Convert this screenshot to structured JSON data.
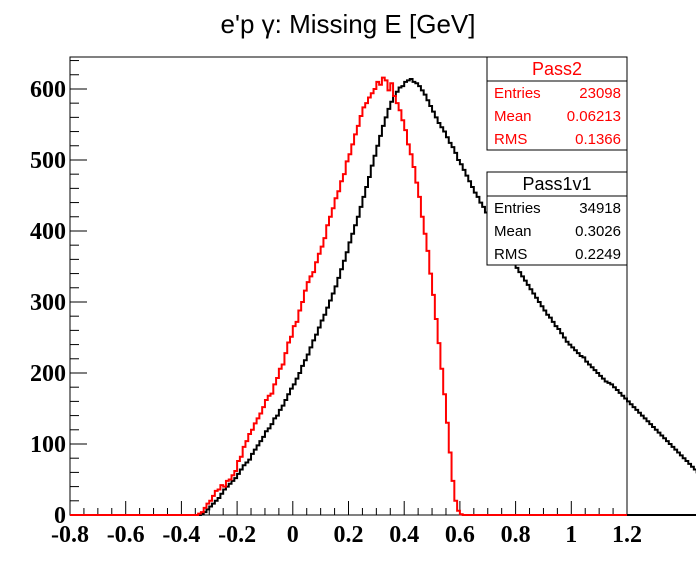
{
  "chart_data": {
    "type": "bar",
    "title_prefix": "e'p ",
    "title_symbol": "γ",
    "title_suffix": ": Missing E [GeV]",
    "xlabel": "",
    "ylabel": "",
    "xlim": [
      -0.8,
      1.2
    ],
    "ylim": [
      0,
      645
    ],
    "x_ticks": [
      -0.8,
      -0.6,
      -0.4,
      -0.2,
      0,
      0.2,
      0.4,
      0.6,
      0.8,
      1,
      1.2
    ],
    "x_tick_labels": [
      "-0.8",
      "-0.6",
      "-0.4",
      "-0.2",
      "0",
      "0.2",
      "0.4",
      "0.6",
      "0.8",
      "1",
      "1.2"
    ],
    "y_ticks": [
      0,
      100,
      200,
      300,
      400,
      500,
      600
    ],
    "y_tick_labels": [
      "0",
      "100",
      "200",
      "300",
      "400",
      "500",
      "600"
    ],
    "bin_width": 0.01,
    "series": [
      {
        "name": "Pass2",
        "color": "#ff0000",
        "x_start": -0.34,
        "values": [
          2,
          4,
          10,
          16,
          20,
          27,
          34,
          36,
          42,
          40,
          48,
          50,
          56,
          62,
          76,
          82,
          96,
          104,
          114,
          120,
          129,
          136,
          143,
          152,
          162,
          168,
          171,
          184,
          193,
          206,
          212,
          228,
          243,
          251,
          266,
          272,
          288,
          300,
          316,
          328,
          336,
          342,
          356,
          368,
          378,
          390,
          408,
          420,
          432,
          446,
          456,
          470,
          480,
          498,
          508,
          522,
          536,
          548,
          562,
          574,
          580,
          588,
          594,
          600,
          610,
          606,
          616,
          612,
          598,
          608,
          590,
          580,
          570,
          556,
          542,
          522,
          508,
          490,
          468,
          448,
          420,
          396,
          372,
          340,
          310,
          276,
          242,
          206,
          170,
          130,
          88,
          48,
          20,
          6,
          1,
          0
        ]
      },
      {
        "name": "Pass1v1",
        "color": "#000000",
        "x_start": -0.34,
        "values": [
          0,
          2,
          4,
          8,
          12,
          16,
          20,
          24,
          30,
          36,
          40,
          44,
          48,
          52,
          58,
          64,
          70,
          74,
          78,
          86,
          92,
          98,
          104,
          110,
          118,
          122,
          128,
          136,
          140,
          148,
          154,
          162,
          170,
          178,
          184,
          192,
          200,
          210,
          218,
          226,
          236,
          246,
          254,
          264,
          274,
          282,
          292,
          302,
          312,
          322,
          334,
          346,
          358,
          370,
          384,
          396,
          408,
          420,
          434,
          448,
          462,
          476,
          492,
          506,
          520,
          534,
          548,
          560,
          572,
          582,
          590,
          596,
          602,
          604,
          610,
          612,
          614,
          610,
          608,
          604,
          598,
          592,
          584,
          576,
          568,
          560,
          552,
          546,
          540,
          532,
          524,
          518,
          510,
          500,
          494,
          486,
          478,
          470,
          462,
          454,
          448,
          440,
          434,
          426,
          418,
          410,
          404,
          398,
          392,
          386,
          378,
          370,
          362,
          354,
          348,
          342,
          336,
          330,
          324,
          318,
          312,
          306,
          300,
          294,
          288,
          282,
          278,
          272,
          266,
          262,
          256,
          250,
          244,
          240,
          236,
          232,
          228,
          224,
          222,
          216,
          212,
          208,
          204,
          200,
          196,
          192,
          188,
          186,
          184,
          180,
          176,
          172,
          168,
          164,
          160,
          156,
          152,
          148,
          144,
          140,
          136,
          132,
          128,
          124,
          120,
          116,
          112,
          108,
          104,
          100,
          96,
          92,
          88,
          84,
          80,
          76,
          72,
          68,
          64,
          60,
          56,
          52,
          48,
          44,
          40,
          36,
          32,
          28,
          24,
          20,
          16,
          12,
          8,
          4,
          2,
          0,
          0,
          0,
          0,
          0,
          0
        ]
      }
    ],
    "stat_boxes": [
      {
        "title": "Pass2",
        "color": "#ff0000",
        "rows": [
          {
            "label": "Entries",
            "value": "23098"
          },
          {
            "label": "Mean",
            "value": "0.06213"
          },
          {
            "label": "RMS",
            "value": "0.1366"
          }
        ]
      },
      {
        "title": "Pass1v1",
        "color": "#000000",
        "rows": [
          {
            "label": "Entries",
            "value": "34918"
          },
          {
            "label": "Mean",
            "value": "0.3026"
          },
          {
            "label": "RMS",
            "value": "0.2249"
          }
        ]
      }
    ]
  }
}
